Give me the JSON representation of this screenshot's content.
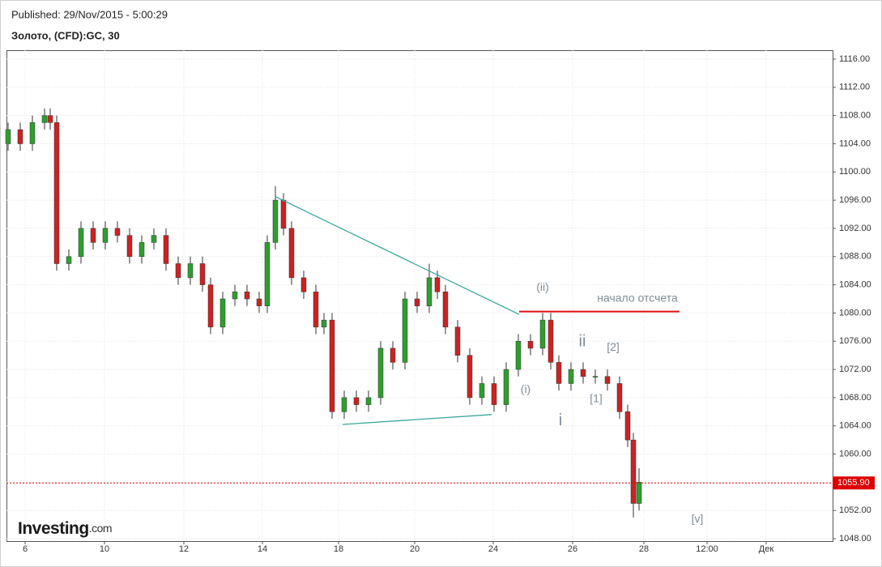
{
  "header": {
    "published": "Published: 29/Nov/2015 - 5:00:29",
    "symbol": "Золото, (CFD):GC, 30"
  },
  "logo": {
    "name": "Investing",
    "suffix": ".com"
  },
  "chart_data": {
    "type": "candlestick",
    "x": [
      0.2,
      1.7,
      3.2,
      4.7,
      5.4,
      6.2,
      7.7,
      9.2,
      10.7,
      12.2,
      13.7,
      15.2,
      16.7,
      18.2,
      19.7,
      21.2,
      22.7,
      24.2,
      25.2,
      26.7,
      28.2,
      29.7,
      31.2,
      32.2,
      33.2,
      34.2,
      35.2,
      36.7,
      38.2,
      39.2,
      40.2,
      41.7,
      43.2,
      44.7,
      46.2,
      47.7,
      49.2,
      50.7,
      52.2,
      53.2,
      54.2,
      55.7,
      57.2,
      58.7,
      60.2,
      61.7,
      63.2,
      64.7,
      66.2,
      67.2,
      68.2,
      69.7,
      71.2,
      72.7,
      74.2,
      75.7,
      76.7,
      77.4,
      78.1
    ],
    "open": [
      1104,
      1106,
      1104,
      1107,
      1108,
      1107,
      1087,
      1088,
      1092,
      1090,
      1092,
      1091,
      1088,
      1090,
      1091,
      1087,
      1085,
      1087,
      1084,
      1078,
      1082,
      1083,
      1082,
      1081,
      1090,
      1096,
      1092,
      1085,
      1083,
      1078,
      1079,
      1066,
      1068,
      1067,
      1068,
      1075,
      1073,
      1082,
      1081,
      1085,
      1083,
      1078,
      1074,
      1068,
      1070,
      1067,
      1072,
      1076,
      1075,
      1079,
      1073,
      1070,
      1072,
      1071,
      1071,
      1070,
      1066,
      1062,
      1053
    ],
    "high": [
      1107,
      1107,
      1108,
      1109,
      1109,
      1108,
      1089,
      1093,
      1093,
      1093,
      1093,
      1092,
      1091,
      1092,
      1092,
      1088,
      1088,
      1088,
      1085,
      1083,
      1084,
      1084,
      1083,
      1091,
      1098,
      1097,
      1093,
      1086,
      1084,
      1080,
      1080,
      1069,
      1069,
      1069,
      1076,
      1076,
      1083,
      1083,
      1087,
      1086,
      1084,
      1079,
      1075,
      1071,
      1071,
      1073,
      1077,
      1077,
      1080,
      1080,
      1074,
      1073,
      1073,
      1072,
      1072,
      1071,
      1067,
      1063,
      1058
    ],
    "low": [
      1103,
      1103,
      1103,
      1106,
      1106,
      1086,
      1086,
      1087,
      1089,
      1089,
      1090,
      1087,
      1087,
      1089,
      1086,
      1084,
      1084,
      1083,
      1077,
      1077,
      1081,
      1081,
      1080,
      1080,
      1089,
      1091,
      1084,
      1082,
      1077,
      1077,
      1065,
      1065,
      1066,
      1066,
      1067,
      1072,
      1072,
      1080,
      1080,
      1082,
      1077,
      1073,
      1067,
      1067,
      1066,
      1066,
      1071,
      1074,
      1074,
      1072,
      1069,
      1069,
      1070,
      1070,
      1069,
      1065,
      1061,
      1051,
      1052
    ],
    "close": [
      1106,
      1104,
      1107,
      1108,
      1107,
      1087,
      1088,
      1092,
      1090,
      1092,
      1091,
      1088,
      1090,
      1091,
      1087,
      1085,
      1087,
      1084,
      1078,
      1082,
      1083,
      1082,
      1081,
      1090,
      1096,
      1092,
      1085,
      1083,
      1078,
      1079,
      1066,
      1068,
      1067,
      1068,
      1075,
      1073,
      1082,
      1081,
      1085,
      1083,
      1078,
      1074,
      1068,
      1070,
      1067,
      1072,
      1076,
      1075,
      1079,
      1073,
      1070,
      1072,
      1071,
      1071,
      1070,
      1066,
      1062,
      1053,
      1056
    ],
    "up_color": "#2e9e2e",
    "down_color": "#cc2222",
    "xlim": [
      0,
      102
    ],
    "xticks": [
      {
        "value": 2.3,
        "label": "6"
      },
      {
        "value": 12.1,
        "label": "10"
      },
      {
        "value": 21.9,
        "label": "12"
      },
      {
        "value": 31.6,
        "label": "14"
      },
      {
        "value": 41,
        "label": "18"
      },
      {
        "value": 50.4,
        "label": "20"
      },
      {
        "value": 60.1,
        "label": "24"
      },
      {
        "value": 69.9,
        "label": "26"
      },
      {
        "value": 78.7,
        "label": "28"
      },
      {
        "value": 86.5,
        "label": "12:00"
      },
      {
        "value": 93.8,
        "label": "Дек"
      }
    ],
    "ylim": [
      1047.66,
      1117.26
    ],
    "yticks": [
      {
        "value": 1048,
        "label": "1048.00"
      },
      {
        "value": 1052,
        "label": "1052.00"
      },
      {
        "value": 1056,
        "label": "1056.00"
      },
      {
        "value": 1060,
        "label": "1060.00"
      },
      {
        "value": 1064,
        "label": "1064.00"
      },
      {
        "value": 1068,
        "label": "1068.00"
      },
      {
        "value": 1072,
        "label": "1072.00"
      },
      {
        "value": 1076,
        "label": "1076.00"
      },
      {
        "value": 1080,
        "label": "1080.00"
      },
      {
        "value": 1084,
        "label": "1084.00"
      },
      {
        "value": 1088,
        "label": "1088.00"
      },
      {
        "value": 1092,
        "label": "1092.00"
      },
      {
        "value": 1096,
        "label": "1096.00"
      },
      {
        "value": 1100,
        "label": "1100.00"
      },
      {
        "value": 1104,
        "label": "1104.00"
      },
      {
        "value": 1108,
        "label": "1108.00"
      },
      {
        "value": 1112,
        "label": "1112.00"
      },
      {
        "value": 1116,
        "label": "1116.00"
      }
    ],
    "grid": true,
    "last_price": {
      "value": 1055.9,
      "value_label": "1055.90",
      "color": "#dd0000"
    },
    "trendlines": [
      {
        "x": [
          33.2,
          63.3
        ],
        "y": [
          1096.5,
          1079.8
        ],
        "color": "#3aa89a"
      },
      {
        "x": [
          41.5,
          59.9
        ],
        "y": [
          1064.2,
          1065.6
        ],
        "color": "#3aa89a"
      }
    ],
    "level": {
      "x": [
        63.3,
        83.1
      ],
      "y": 1080.2,
      "color": "#e01010"
    },
    "annotations": [
      {
        "text": "(ii)",
        "x": 66.2,
        "y": 1083.6,
        "size": 14
      },
      {
        "text": "начало отсчета",
        "x": 77.9,
        "y": 1082,
        "size": 14
      },
      {
        "text": "ii",
        "x": 71.1,
        "y": 1075.9,
        "size": 20
      },
      {
        "text": "[2]",
        "x": 74.9,
        "y": 1075.1,
        "size": 14
      },
      {
        "text": "(i)",
        "x": 64.1,
        "y": 1069.1,
        "size": 14
      },
      {
        "text": "[1]",
        "x": 72.8,
        "y": 1067.8,
        "size": 14
      },
      {
        "text": "i",
        "x": 68.4,
        "y": 1064.7,
        "size": 20
      },
      {
        "text": "[v]",
        "x": 85.3,
        "y": 1050.7,
        "size": 14
      }
    ]
  }
}
